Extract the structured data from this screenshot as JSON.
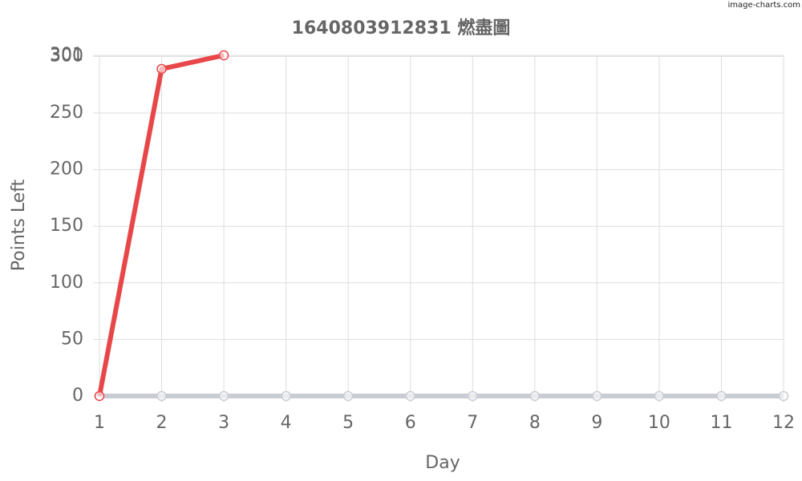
{
  "chart_data": {
    "type": "line",
    "title": "1640803912831 燃盡圖",
    "watermark": "image-charts.com",
    "xlabel": "Day",
    "ylabel": "Points Left",
    "x": [
      1,
      2,
      3,
      4,
      5,
      6,
      7,
      8,
      9,
      10,
      11,
      12
    ],
    "xlim": [
      1,
      12
    ],
    "xticks": [
      1,
      2,
      3,
      4,
      5,
      6,
      7,
      8,
      9,
      10,
      11,
      12
    ],
    "ylim": [
      0,
      301
    ],
    "yticks": [
      0,
      50,
      100,
      150,
      200,
      250,
      300,
      301
    ],
    "grid": true,
    "series": [
      {
        "color": "#c9ccd3",
        "values": [
          0,
          0,
          0,
          0,
          0,
          0,
          0,
          0,
          0,
          0,
          0,
          0
        ]
      },
      {
        "color": "#e8474a",
        "values": [
          0,
          289,
          301,
          null,
          null,
          null,
          null,
          null,
          null,
          null,
          null,
          null
        ]
      }
    ]
  }
}
